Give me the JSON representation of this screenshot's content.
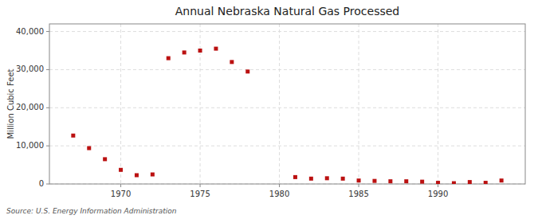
{
  "chart_data": {
    "type": "scatter",
    "title": "Annual Nebraska Natural Gas Processed",
    "ylabel": "Million Cubic Feet",
    "annotations": [
      "Source: U.S. Energy Information Administration"
    ],
    "x": [
      1967,
      1968,
      1969,
      1970,
      1971,
      1972,
      1973,
      1974,
      1975,
      1976,
      1977,
      1978,
      1981,
      1982,
      1983,
      1984,
      1985,
      1986,
      1987,
      1988,
      1989,
      1990,
      1991,
      1992,
      1993,
      1994
    ],
    "values": [
      12700,
      9400,
      6500,
      3700,
      2300,
      2500,
      33000,
      34500,
      35000,
      35500,
      32000,
      29500,
      1800,
      1400,
      1500,
      1400,
      900,
      800,
      700,
      700,
      600,
      300,
      200,
      500,
      300,
      900
    ],
    "color": "#bb1111",
    "marker": "square",
    "xlim": [
      1965.5,
      1995.5
    ],
    "ylim": [
      0,
      42000
    ],
    "xticks": [
      1970,
      1975,
      1980,
      1985,
      1990
    ],
    "yticks": [
      0,
      {
        "value": 10000,
        "label": "10,000"
      },
      {
        "value": 20000,
        "label": "20,000"
      },
      {
        "value": 30000,
        "label": "30,000"
      },
      {
        "value": 40000,
        "label": "40,000"
      }
    ],
    "grid": true
  }
}
